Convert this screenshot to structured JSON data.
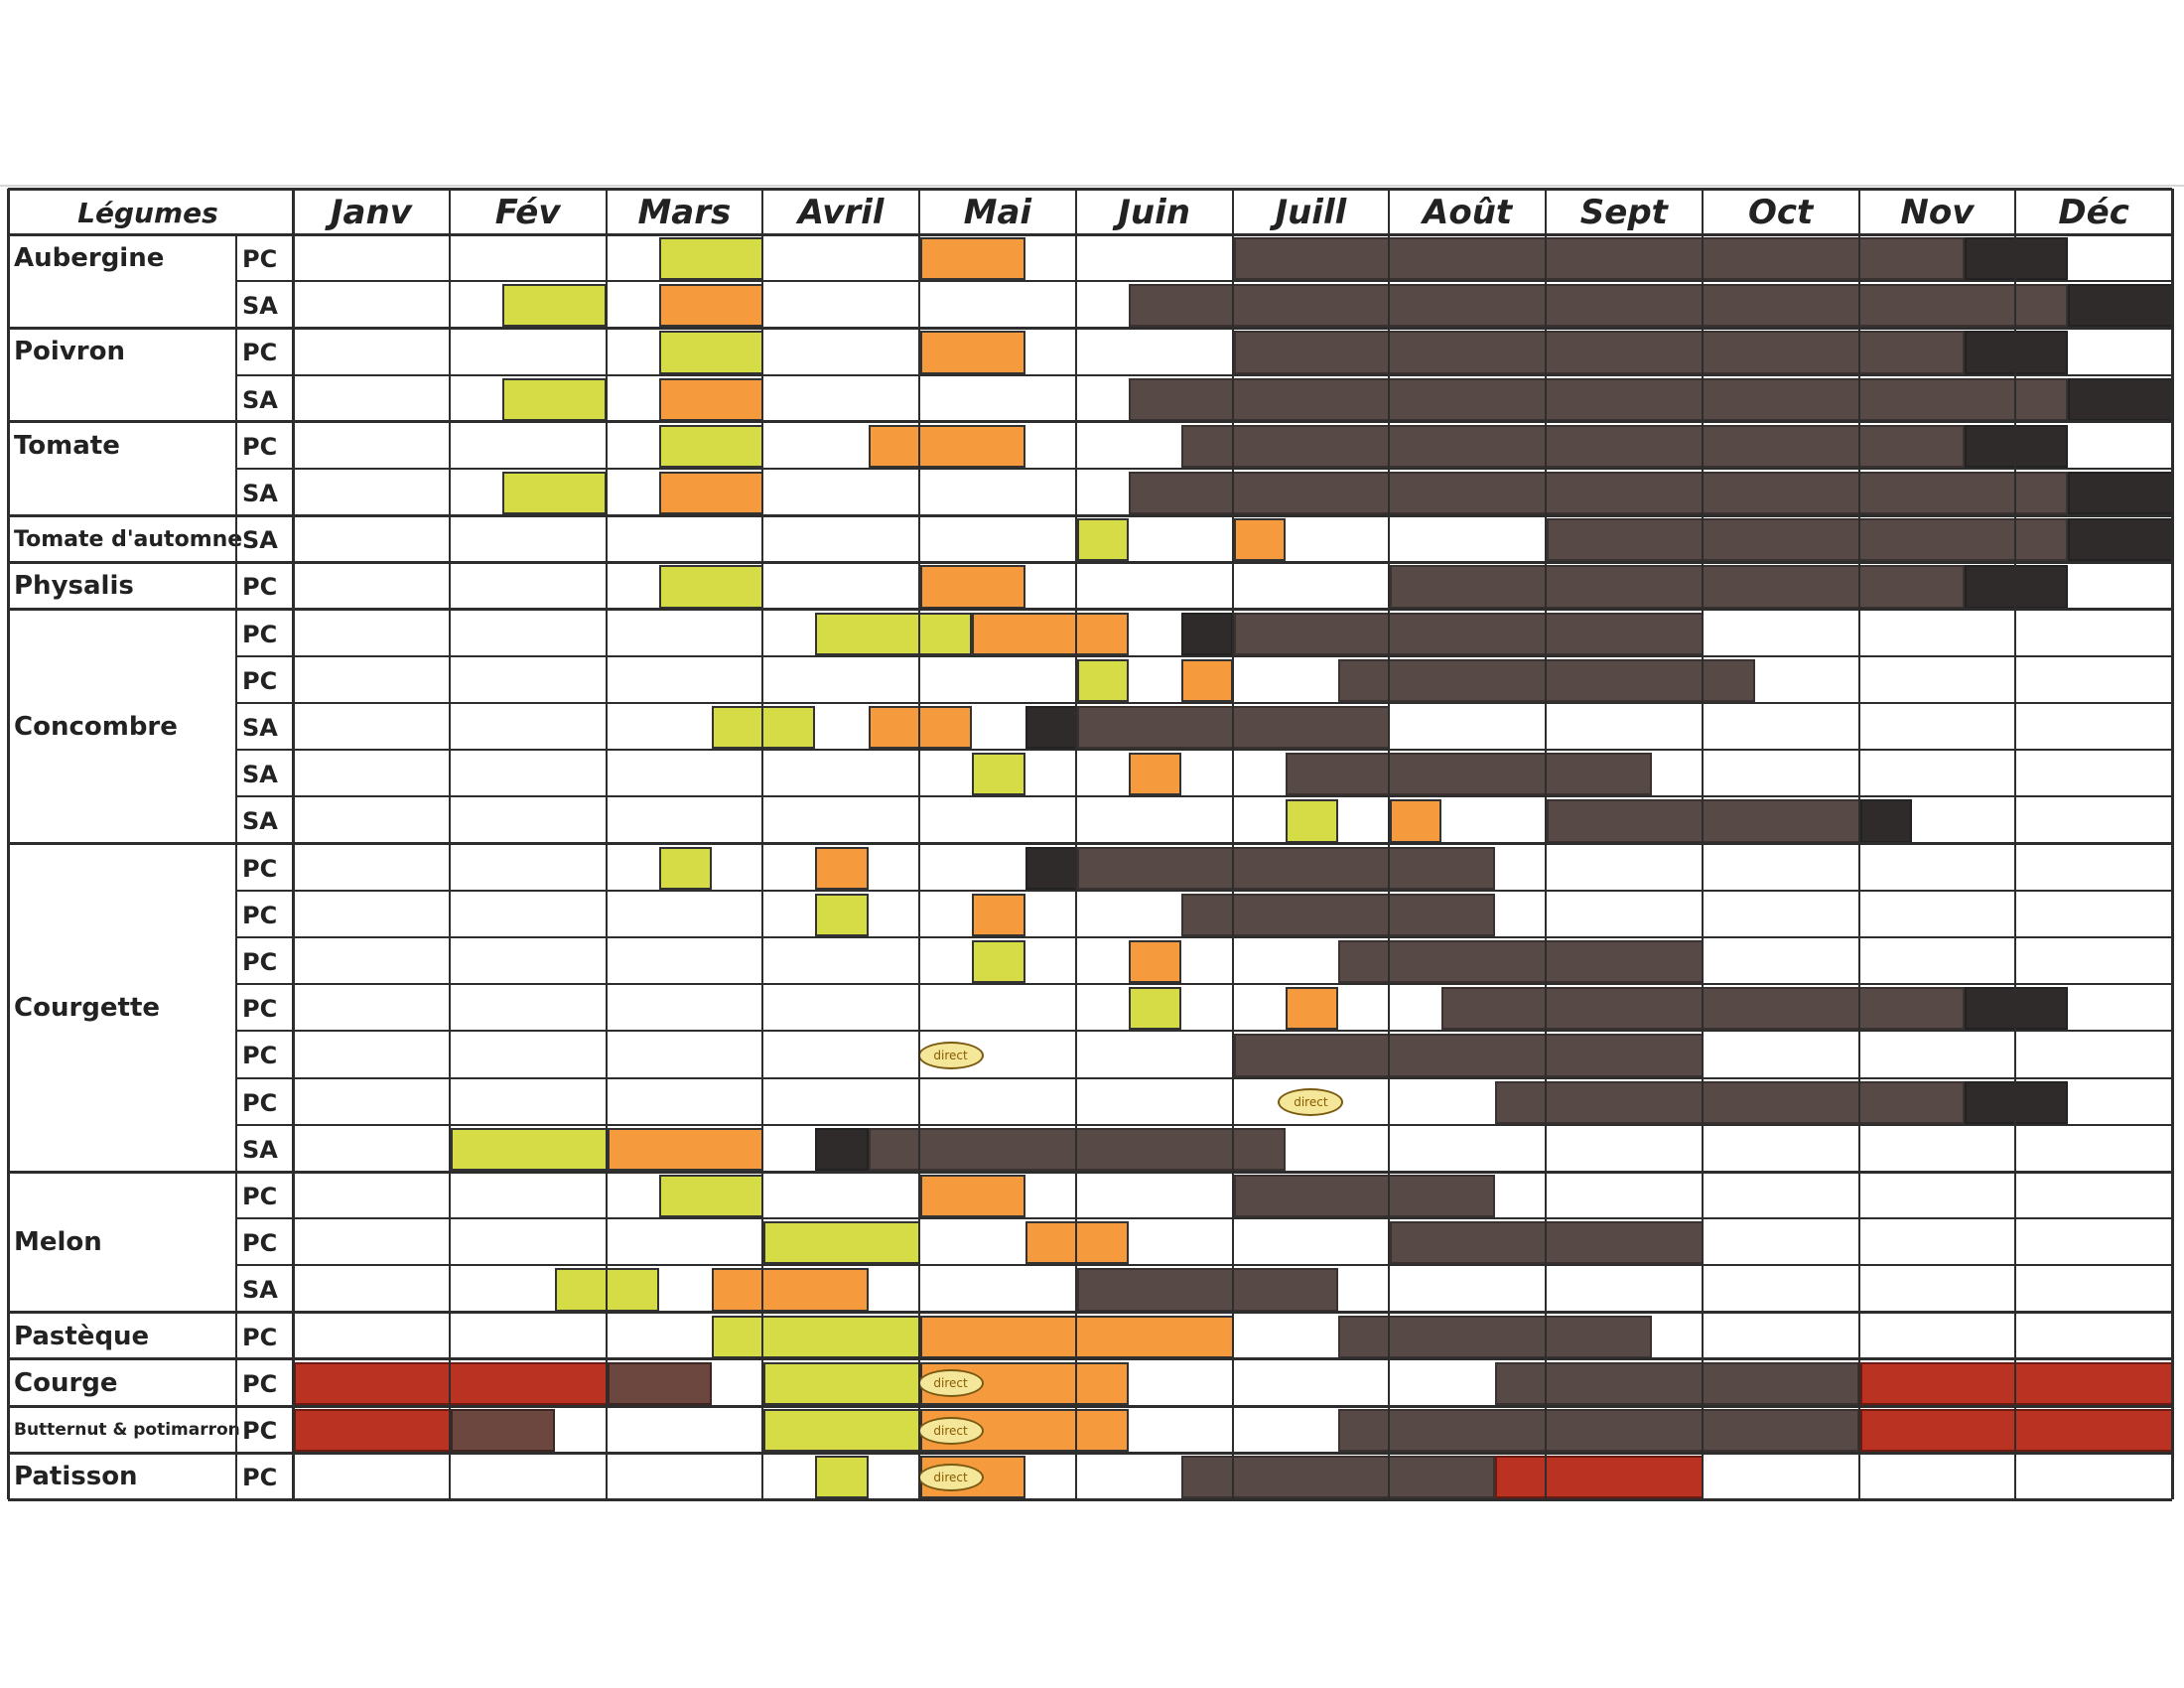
{
  "chart_data": {
    "type": "table",
    "header": "Légumes",
    "months": [
      "Janv",
      "Fév",
      "Mars",
      "Avril",
      "Mai",
      "Juin",
      "Juill",
      "Août",
      "Sept",
      "Oct",
      "Nov",
      "Déc"
    ],
    "direct_label": "direct",
    "colors": {
      "sow": "#d6dc45",
      "plant": "#f69a3e",
      "harvest": "#574a46",
      "harvest-dark": "#2f2b2b",
      "storage": "#b93222",
      "storage-brown": "#6b4740",
      "grid": "#2d2d2d"
    },
    "groups": [
      {
        "name": "Aubergine",
        "rows": [
          {
            "mode": "PC",
            "bars": [
              [
                2.33,
                3,
                "sow"
              ],
              [
                4,
                4.67,
                "plant"
              ],
              [
                6,
                10.67,
                "harvest"
              ],
              [
                10.67,
                11.33,
                "harvest-dark"
              ]
            ]
          },
          {
            "mode": "SA",
            "bars": [
              [
                1.33,
                2,
                "sow"
              ],
              [
                2.33,
                3,
                "plant"
              ],
              [
                5.33,
                11.33,
                "harvest"
              ],
              [
                11.33,
                12,
                "harvest-dark"
              ]
            ]
          }
        ]
      },
      {
        "name": "Poivron",
        "rows": [
          {
            "mode": "PC",
            "bars": [
              [
                2.33,
                3,
                "sow"
              ],
              [
                4,
                4.67,
                "plant"
              ],
              [
                6,
                10.67,
                "harvest"
              ],
              [
                10.67,
                11.33,
                "harvest-dark"
              ]
            ]
          },
          {
            "mode": "SA",
            "bars": [
              [
                1.33,
                2,
                "sow"
              ],
              [
                2.33,
                3,
                "plant"
              ],
              [
                5.33,
                11.33,
                "harvest"
              ],
              [
                11.33,
                12,
                "harvest-dark"
              ]
            ]
          }
        ]
      },
      {
        "name": "Tomate",
        "rows": [
          {
            "mode": "PC",
            "bars": [
              [
                2.33,
                3,
                "sow"
              ],
              [
                3.67,
                4.67,
                "plant"
              ],
              [
                5.67,
                10.67,
                "harvest"
              ],
              [
                10.67,
                11.33,
                "harvest-dark"
              ]
            ]
          },
          {
            "mode": "SA",
            "bars": [
              [
                1.33,
                2,
                "sow"
              ],
              [
                2.33,
                3,
                "plant"
              ],
              [
                5.33,
                11.33,
                "harvest"
              ],
              [
                11.33,
                12,
                "harvest-dark"
              ]
            ]
          }
        ]
      },
      {
        "name": "Tomate d'automne",
        "small": true,
        "rows": [
          {
            "mode": "SA",
            "bars": [
              [
                5,
                5.33,
                "sow"
              ],
              [
                6,
                6.33,
                "plant"
              ],
              [
                8,
                11.33,
                "harvest"
              ],
              [
                11.33,
                12,
                "harvest-dark"
              ]
            ]
          }
        ]
      },
      {
        "name": "Physalis",
        "rows": [
          {
            "mode": "PC",
            "bars": [
              [
                2.33,
                3,
                "sow"
              ],
              [
                4,
                4.67,
                "plant"
              ],
              [
                7,
                10.67,
                "harvest"
              ],
              [
                10.67,
                11.33,
                "harvest-dark"
              ]
            ]
          }
        ]
      },
      {
        "name": "Concombre",
        "rows": [
          {
            "mode": "PC",
            "bars": [
              [
                3.33,
                4.33,
                "sow"
              ],
              [
                4.33,
                5.33,
                "plant"
              ],
              [
                5.67,
                6,
                "harvest-dark"
              ],
              [
                6,
                9,
                "harvest"
              ]
            ]
          },
          {
            "mode": "PC",
            "bars": [
              [
                5,
                5.33,
                "sow"
              ],
              [
                5.67,
                6,
                "plant"
              ],
              [
                6.67,
                9.33,
                "harvest"
              ]
            ]
          },
          {
            "mode": "SA",
            "bars": [
              [
                2.67,
                3.33,
                "sow"
              ],
              [
                3.67,
                4.33,
                "plant"
              ],
              [
                4.67,
                5,
                "harvest-dark"
              ],
              [
                5,
                7,
                "harvest"
              ]
            ]
          },
          {
            "mode": "SA",
            "bars": [
              [
                4.33,
                4.67,
                "sow"
              ],
              [
                5.33,
                5.67,
                "plant"
              ],
              [
                6.33,
                8.67,
                "harvest"
              ]
            ]
          },
          {
            "mode": "SA",
            "bars": [
              [
                6.33,
                6.67,
                "sow"
              ],
              [
                7,
                7.33,
                "plant"
              ],
              [
                8,
                10,
                "harvest"
              ],
              [
                10,
                10.33,
                "harvest-dark"
              ]
            ]
          }
        ]
      },
      {
        "name": "Courgette",
        "rows": [
          {
            "mode": "PC",
            "bars": [
              [
                2.33,
                2.67,
                "sow"
              ],
              [
                3.33,
                3.67,
                "plant"
              ],
              [
                4.67,
                5,
                "harvest-dark"
              ],
              [
                5,
                7.67,
                "harvest"
              ]
            ]
          },
          {
            "mode": "PC",
            "bars": [
              [
                3.33,
                3.67,
                "sow"
              ],
              [
                4.33,
                4.67,
                "plant"
              ],
              [
                5.67,
                7.67,
                "harvest"
              ]
            ]
          },
          {
            "mode": "PC",
            "bars": [
              [
                4.33,
                4.67,
                "sow"
              ],
              [
                5.33,
                5.67,
                "plant"
              ],
              [
                6.67,
                9,
                "harvest"
              ]
            ]
          },
          {
            "mode": "PC",
            "bars": [
              [
                5.33,
                5.67,
                "sow"
              ],
              [
                6.33,
                6.67,
                "plant"
              ],
              [
                7.33,
                10.67,
                "harvest"
              ],
              [
                10.67,
                11.33,
                "harvest-dark"
              ]
            ]
          },
          {
            "mode": "PC",
            "direct": 4.2,
            "bars": [
              [
                6,
                9,
                "harvest"
              ]
            ]
          },
          {
            "mode": "PC",
            "direct": 6.5,
            "bars": [
              [
                7.67,
                10.67,
                "harvest"
              ],
              [
                10.67,
                11.33,
                "harvest-dark"
              ]
            ]
          },
          {
            "mode": "SA",
            "bars": [
              [
                1,
                2,
                "sow"
              ],
              [
                2,
                3,
                "plant"
              ],
              [
                3.33,
                3.67,
                "harvest-dark"
              ],
              [
                3.67,
                6.33,
                "harvest"
              ]
            ]
          }
        ]
      },
      {
        "name": "Melon",
        "rows": [
          {
            "mode": "PC",
            "bars": [
              [
                2.33,
                3,
                "sow"
              ],
              [
                4,
                4.67,
                "plant"
              ],
              [
                6,
                7.67,
                "harvest"
              ]
            ]
          },
          {
            "mode": "PC",
            "bars": [
              [
                3,
                4,
                "sow"
              ],
              [
                4.67,
                5.33,
                "plant"
              ],
              [
                7,
                9,
                "harvest"
              ]
            ]
          },
          {
            "mode": "SA",
            "bars": [
              [
                1.67,
                2.33,
                "sow"
              ],
              [
                2.67,
                3.67,
                "plant"
              ],
              [
                5,
                6.67,
                "harvest"
              ]
            ]
          }
        ]
      },
      {
        "name": "Pastèque",
        "rows": [
          {
            "mode": "PC",
            "bars": [
              [
                2.67,
                4,
                "sow"
              ],
              [
                4,
                6,
                "plant"
              ],
              [
                6.67,
                8.67,
                "harvest"
              ]
            ]
          }
        ]
      },
      {
        "name": "Courge",
        "rows": [
          {
            "mode": "PC",
            "direct": 4.2,
            "bars": [
              [
                0,
                2,
                "storage"
              ],
              [
                2,
                2.67,
                "storage-brown"
              ],
              [
                3,
                4,
                "sow"
              ],
              [
                4,
                5.33,
                "plant"
              ],
              [
                7.67,
                10,
                "harvest"
              ],
              [
                10,
                12,
                "storage"
              ]
            ]
          }
        ]
      },
      {
        "name": "Butternut & potimarron",
        "tiny": true,
        "rows": [
          {
            "mode": "PC",
            "direct": 4.2,
            "bars": [
              [
                0,
                1,
                "storage"
              ],
              [
                1,
                1.67,
                "storage-brown"
              ],
              [
                3,
                4,
                "sow"
              ],
              [
                4,
                5.33,
                "plant"
              ],
              [
                6.67,
                10,
                "harvest"
              ],
              [
                10,
                12,
                "storage"
              ]
            ]
          }
        ]
      },
      {
        "name": "Patisson",
        "rows": [
          {
            "mode": "PC",
            "direct": 4.2,
            "bars": [
              [
                3.33,
                3.67,
                "sow"
              ],
              [
                4,
                4.67,
                "plant"
              ],
              [
                5.67,
                7.67,
                "harvest"
              ],
              [
                7.67,
                9,
                "storage"
              ]
            ]
          }
        ]
      }
    ]
  }
}
